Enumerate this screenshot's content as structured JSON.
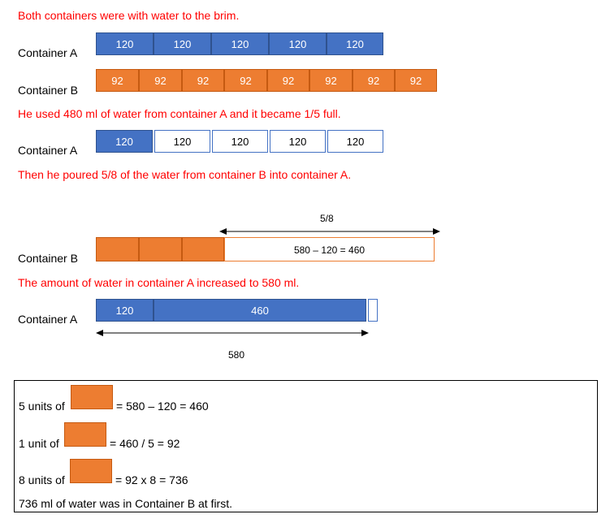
{
  "colors": {
    "text_red": "#ff0000",
    "blue": "#4472c4",
    "orange": "#ed7d31"
  },
  "steps": {
    "step1": "Both containers were with water to the brim.",
    "step2": "He used 480 ml of water from container A and it became 1/5 full.",
    "step3": "Then he poured 5/8 of the water from container B into container A.",
    "step4": "The amount of water in container A increased to 580 ml."
  },
  "labels": {
    "a": "Container A",
    "b": "Container B"
  },
  "bar_a_full": [
    "120",
    "120",
    "120",
    "120",
    "120"
  ],
  "bar_b_full": [
    "92",
    "92",
    "92",
    "92",
    "92",
    "92",
    "92",
    "92"
  ],
  "bar_a_after": [
    "120",
    "120",
    "120",
    "120",
    "120"
  ],
  "bar_b_after": {
    "poured_label": "5/8",
    "poured_expression": "580 – 120 = 460"
  },
  "bar_a_final": {
    "first": "120",
    "second": "460",
    "total_label": "580"
  },
  "summary": {
    "line1_prefix": "5 units of",
    "line1_suffix": "= 580 – 120 = 460",
    "line2_prefix": "1 unit of",
    "line2_suffix": "= 460 / 5 = 92",
    "line3_prefix": "8 units of",
    "line3_suffix": "= 92 x 8 = 736",
    "conclusion": "736 ml of water was in Container B at first."
  }
}
